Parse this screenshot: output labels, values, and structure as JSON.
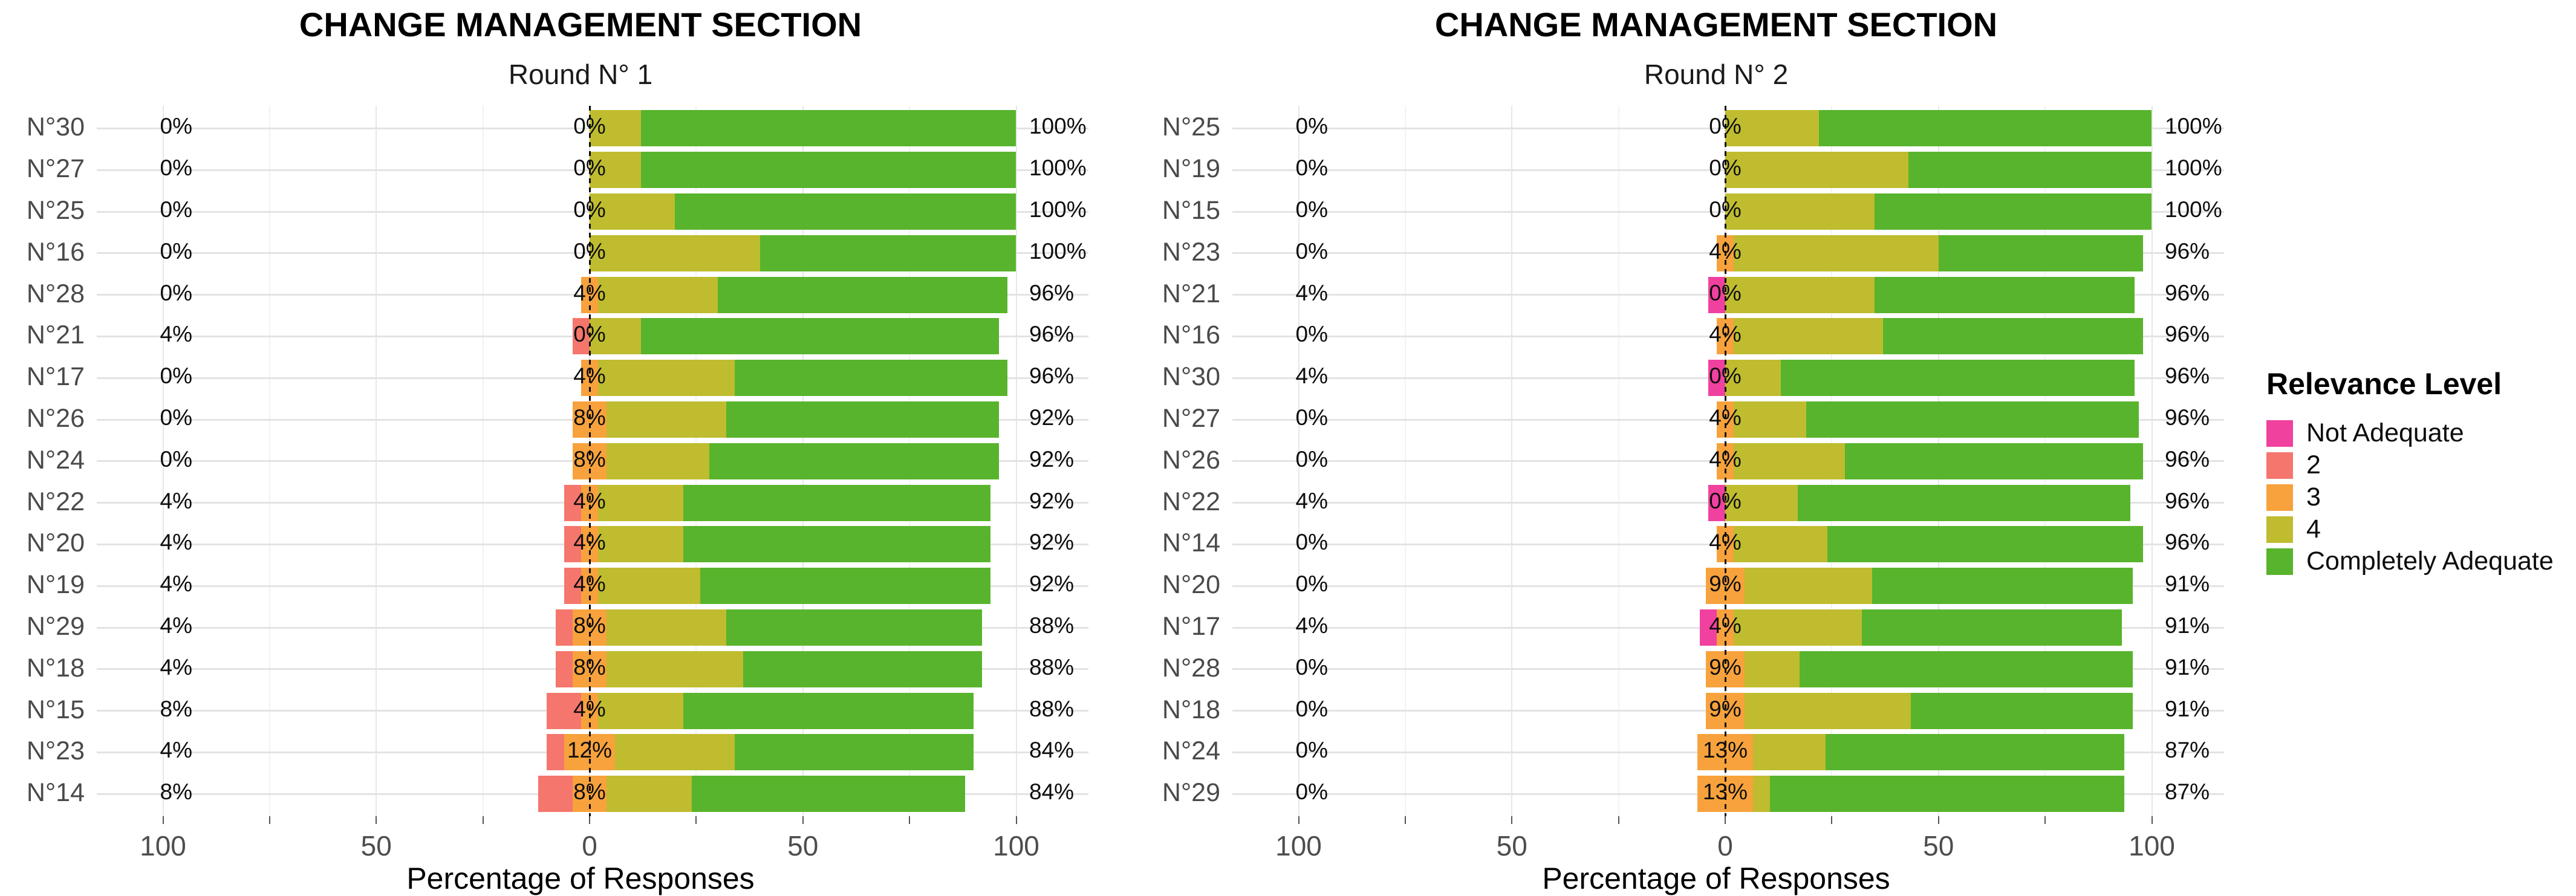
{
  "legend": {
    "title": "Relevance Level",
    "items": [
      {
        "label": "Not Adequate",
        "color": "#F0419E"
      },
      {
        "label": "2",
        "color": "#F4766C"
      },
      {
        "label": "3",
        "color": "#F7A23C"
      },
      {
        "label": "4",
        "color": "#BFBC2F"
      },
      {
        "label": "Completely Adequate",
        "color": "#58B42C"
      }
    ]
  },
  "chart_data": [
    {
      "type": "diverging_stacked_bar",
      "title": "CHANGE MANAGEMENT SECTION",
      "subtitle": "Round N° 1",
      "xlabel": "Percentage of Responses",
      "x_ticks": [
        -100,
        -50,
        0,
        50,
        100
      ],
      "x_tick_labels": [
        "100",
        "50",
        "0",
        "50",
        "100"
      ],
      "xlim": [
        -110,
        110
      ],
      "grid": true,
      "legend_position": "right",
      "levels": [
        "Not Adequate",
        "2",
        "3",
        "4",
        "Completely Adequate"
      ],
      "neutral_level": "3",
      "rows": [
        {
          "item": "N°30",
          "left_label": "0%",
          "center_label": "0%",
          "right_label": "100%",
          "values": [
            0,
            0,
            0,
            12,
            88
          ]
        },
        {
          "item": "N°27",
          "left_label": "0%",
          "center_label": "0%",
          "right_label": "100%",
          "values": [
            0,
            0,
            0,
            12,
            88
          ]
        },
        {
          "item": "N°25",
          "left_label": "0%",
          "center_label": "0%",
          "right_label": "100%",
          "values": [
            0,
            0,
            0,
            20,
            80
          ]
        },
        {
          "item": "N°16",
          "left_label": "0%",
          "center_label": "0%",
          "right_label": "100%",
          "values": [
            0,
            0,
            0,
            40,
            60
          ]
        },
        {
          "item": "N°28",
          "left_label": "0%",
          "center_label": "4%",
          "right_label": "96%",
          "values": [
            0,
            0,
            4,
            28,
            68
          ]
        },
        {
          "item": "N°21",
          "left_label": "4%",
          "center_label": "0%",
          "right_label": "96%",
          "values": [
            0,
            4,
            0,
            12,
            84
          ]
        },
        {
          "item": "N°17",
          "left_label": "0%",
          "center_label": "4%",
          "right_label": "96%",
          "values": [
            0,
            0,
            4,
            32,
            64
          ]
        },
        {
          "item": "N°26",
          "left_label": "0%",
          "center_label": "8%",
          "right_label": "92%",
          "values": [
            0,
            0,
            8,
            28,
            64
          ]
        },
        {
          "item": "N°24",
          "left_label": "0%",
          "center_label": "8%",
          "right_label": "92%",
          "values": [
            0,
            0,
            8,
            24,
            68
          ]
        },
        {
          "item": "N°22",
          "left_label": "4%",
          "center_label": "4%",
          "right_label": "92%",
          "values": [
            0,
            4,
            4,
            20,
            72
          ]
        },
        {
          "item": "N°20",
          "left_label": "4%",
          "center_label": "4%",
          "right_label": "92%",
          "values": [
            0,
            4,
            4,
            20,
            72
          ]
        },
        {
          "item": "N°19",
          "left_label": "4%",
          "center_label": "4%",
          "right_label": "92%",
          "values": [
            0,
            4,
            4,
            24,
            68
          ]
        },
        {
          "item": "N°29",
          "left_label": "4%",
          "center_label": "8%",
          "right_label": "88%",
          "values": [
            0,
            4,
            8,
            28,
            60
          ]
        },
        {
          "item": "N°18",
          "left_label": "4%",
          "center_label": "8%",
          "right_label": "88%",
          "values": [
            0,
            4,
            8,
            32,
            56
          ]
        },
        {
          "item": "N°15",
          "left_label": "8%",
          "center_label": "4%",
          "right_label": "88%",
          "values": [
            0,
            8,
            4,
            20,
            68
          ]
        },
        {
          "item": "N°23",
          "left_label": "4%",
          "center_label": "12%",
          "right_label": "84%",
          "values": [
            0,
            4,
            12,
            28,
            56
          ]
        },
        {
          "item": "N°14",
          "left_label": "8%",
          "center_label": "8%",
          "right_label": "84%",
          "values": [
            0,
            8,
            8,
            20,
            64
          ]
        }
      ]
    },
    {
      "type": "diverging_stacked_bar",
      "title": "CHANGE MANAGEMENT SECTION",
      "subtitle": "Round N° 2",
      "xlabel": "Percentage of Responses",
      "x_ticks": [
        -100,
        -50,
        0,
        50,
        100
      ],
      "x_tick_labels": [
        "100",
        "50",
        "0",
        "50",
        "100"
      ],
      "xlim": [
        -110,
        110
      ],
      "grid": true,
      "legend_position": "right",
      "levels": [
        "Not Adequate",
        "2",
        "3",
        "4",
        "Completely Adequate"
      ],
      "neutral_level": "3",
      "rows": [
        {
          "item": "N°25",
          "left_label": "0%",
          "center_label": "0%",
          "right_label": "100%",
          "values": [
            0,
            0,
            0,
            22,
            78
          ]
        },
        {
          "item": "N°19",
          "left_label": "0%",
          "center_label": "0%",
          "right_label": "100%",
          "values": [
            0,
            0,
            0,
            43,
            57
          ]
        },
        {
          "item": "N°15",
          "left_label": "0%",
          "center_label": "0%",
          "right_label": "100%",
          "values": [
            0,
            0,
            0,
            35,
            65
          ]
        },
        {
          "item": "N°23",
          "left_label": "0%",
          "center_label": "4%",
          "right_label": "96%",
          "values": [
            0,
            0,
            4,
            48,
            48
          ]
        },
        {
          "item": "N°21",
          "left_label": "4%",
          "center_label": "0%",
          "right_label": "96%",
          "values": [
            4,
            0,
            0,
            35,
            61
          ]
        },
        {
          "item": "N°16",
          "left_label": "0%",
          "center_label": "4%",
          "right_label": "96%",
          "values": [
            0,
            0,
            4,
            35,
            61
          ]
        },
        {
          "item": "N°30",
          "left_label": "4%",
          "center_label": "0%",
          "right_label": "96%",
          "values": [
            4,
            0,
            0,
            13,
            83
          ]
        },
        {
          "item": "N°27",
          "left_label": "0%",
          "center_label": "4%",
          "right_label": "96%",
          "values": [
            0,
            0,
            4,
            17,
            78
          ]
        },
        {
          "item": "N°26",
          "left_label": "0%",
          "center_label": "4%",
          "right_label": "96%",
          "values": [
            0,
            0,
            4,
            26,
            70
          ]
        },
        {
          "item": "N°22",
          "left_label": "4%",
          "center_label": "0%",
          "right_label": "96%",
          "values": [
            4,
            0,
            0,
            17,
            78
          ]
        },
        {
          "item": "N°14",
          "left_label": "0%",
          "center_label": "4%",
          "right_label": "96%",
          "values": [
            0,
            0,
            4,
            22,
            74
          ]
        },
        {
          "item": "N°20",
          "left_label": "0%",
          "center_label": "9%",
          "right_label": "91%",
          "values": [
            0,
            0,
            9,
            30,
            61
          ]
        },
        {
          "item": "N°17",
          "left_label": "4%",
          "center_label": "4%",
          "right_label": "91%",
          "values": [
            4,
            0,
            4,
            30,
            61
          ]
        },
        {
          "item": "N°28",
          "left_label": "0%",
          "center_label": "9%",
          "right_label": "91%",
          "values": [
            0,
            0,
            9,
            13,
            78
          ]
        },
        {
          "item": "N°18",
          "left_label": "0%",
          "center_label": "9%",
          "right_label": "91%",
          "values": [
            0,
            0,
            9,
            39,
            52
          ]
        },
        {
          "item": "N°24",
          "left_label": "0%",
          "center_label": "13%",
          "right_label": "87%",
          "values": [
            0,
            0,
            13,
            17,
            70
          ]
        },
        {
          "item": "N°29",
          "left_label": "0%",
          "center_label": "13%",
          "right_label": "87%",
          "values": [
            0,
            0,
            13,
            4,
            83
          ]
        }
      ]
    }
  ]
}
